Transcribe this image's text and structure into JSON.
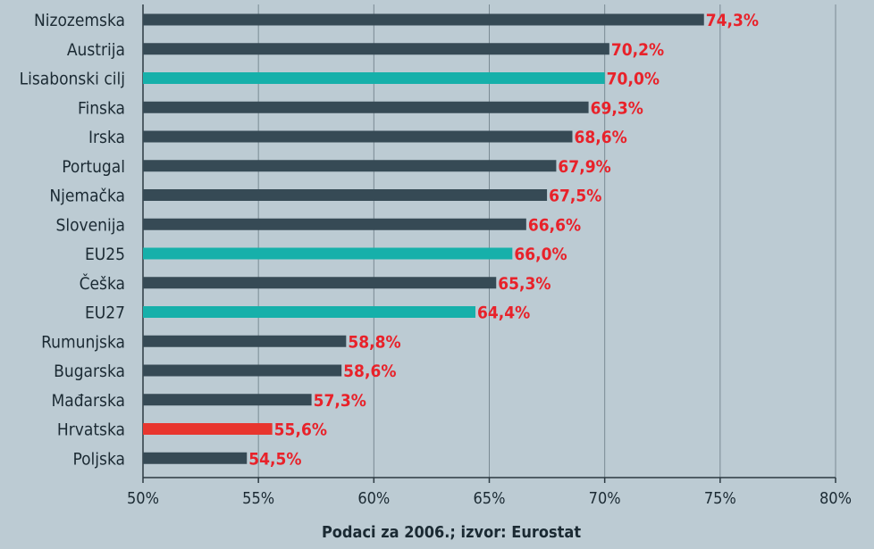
{
  "chart_data": {
    "type": "bar",
    "orientation": "horizontal",
    "categories": [
      "Nizozemska",
      "Austrija",
      "Lisabonski cilj",
      "Finska",
      "Irska",
      "Portugal",
      "Njemačka",
      "Slovenija",
      "EU25",
      "Češka",
      "EU27",
      "Rumunjska",
      "Bugarska",
      "Mađarska",
      "Hrvatska",
      "Poljska"
    ],
    "values": [
      74.3,
      70.2,
      70.0,
      69.3,
      68.6,
      67.9,
      67.5,
      66.6,
      66.0,
      65.3,
      64.4,
      58.8,
      58.6,
      57.3,
      55.6,
      54.5
    ],
    "value_labels": [
      "74,3%",
      "70,2%",
      "70,0%",
      "69,3%",
      "68,6%",
      "67,9%",
      "67,5%",
      "66,6%",
      "66,0%",
      "65,3%",
      "64,4%",
      "58,8%",
      "58,6%",
      "57,3%",
      "55,6%",
      "54,5%"
    ],
    "bar_colors": [
      "#364a55",
      "#364a55",
      "#16b0aa",
      "#364a55",
      "#364a55",
      "#364a55",
      "#364a55",
      "#364a55",
      "#16b0aa",
      "#364a55",
      "#16b0aa",
      "#364a55",
      "#364a55",
      "#364a55",
      "#e8352e",
      "#364a55"
    ],
    "xlim": [
      50,
      80
    ],
    "xticks": [
      50,
      55,
      60,
      65,
      70,
      75,
      80
    ],
    "xtick_labels": [
      "50%",
      "55%",
      "60%",
      "65%",
      "70%",
      "75%",
      "80%"
    ],
    "grid": true,
    "note": "Podaci za 2006.; izvor: Eurostat"
  },
  "colors": {
    "background": "#bccbd3",
    "bar_default": "#364a55",
    "bar_highlight": "#16b0aa",
    "bar_croatia": "#e8352e",
    "value_label": "#e8222a",
    "grid": "#7a8a93"
  }
}
